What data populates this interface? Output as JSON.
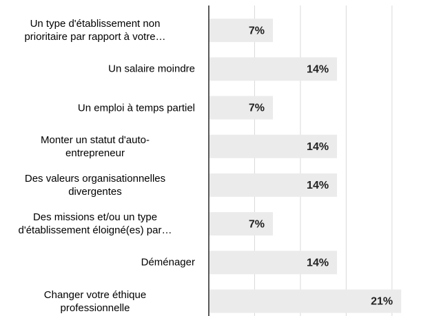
{
  "chart_data": {
    "type": "bar",
    "orientation": "horizontal",
    "categories": [
      "Un type d'établissement non\nprioritaire par rapport à votre…",
      "Un salaire moindre",
      "Un emploi à temps partiel",
      "Monter un statut d'auto-\nentrepreneur",
      "Des valeurs organisationnelles\ndivergentes",
      "Des missions et/ou un type\nd'établissement éloigné(es) par…",
      "Déménager",
      "Changer votre éthique\nprofessionnelle"
    ],
    "values": [
      7,
      14,
      7,
      14,
      14,
      7,
      14,
      21
    ],
    "value_labels": [
      "7%",
      "14%",
      "7%",
      "14%",
      "14%",
      "7%",
      "14%",
      "21%"
    ],
    "color": "#ebebeb",
    "xlim": [
      0,
      24
    ],
    "xticks": [
      0,
      5,
      10,
      15,
      20
    ],
    "grid": true
  }
}
